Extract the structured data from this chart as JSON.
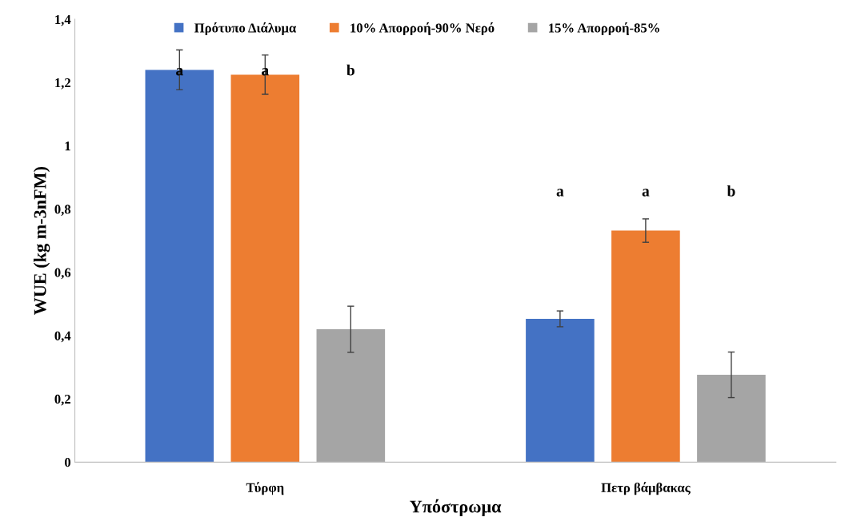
{
  "chart_data": {
    "type": "bar",
    "xlabel": "Υπόστρωμα",
    "ylabel": "WUE (kg m-3nFM)",
    "categories": [
      "Τύρφη",
      "Πετρ βάμβακας"
    ],
    "series": [
      {
        "name": "Πρότυπο Διάλυμα",
        "color": "#4472c4",
        "values": [
          1.24,
          0.453
        ],
        "errors": [
          0.063,
          0.025
        ]
      },
      {
        "name": "10% Απορροή-90% Νερό",
        "color": "#ed7d31",
        "values": [
          1.225,
          0.732
        ],
        "errors": [
          0.062,
          0.037
        ]
      },
      {
        "name": "15% Απορροή-85%",
        "color": "#a5a5a5",
        "values": [
          0.42,
          0.276
        ],
        "errors": [
          0.073,
          0.072
        ]
      }
    ],
    "ylim": [
      0,
      1.4
    ],
    "yticks": [
      {
        "value": 0,
        "label": "0"
      },
      {
        "value": 0.2,
        "label": "0,2"
      },
      {
        "value": 0.4,
        "label": "0,4"
      },
      {
        "value": 0.6,
        "label": "0,6"
      },
      {
        "value": 0.8,
        "label": "0,8"
      },
      {
        "value": 1,
        "label": "1"
      },
      {
        "value": 1.2,
        "label": "1,2"
      },
      {
        "value": 1.4,
        "label": "1,4"
      }
    ],
    "grid": false,
    "legend": "top",
    "annotations": [
      "a",
      "a",
      "b",
      "a",
      "a",
      "b"
    ]
  }
}
